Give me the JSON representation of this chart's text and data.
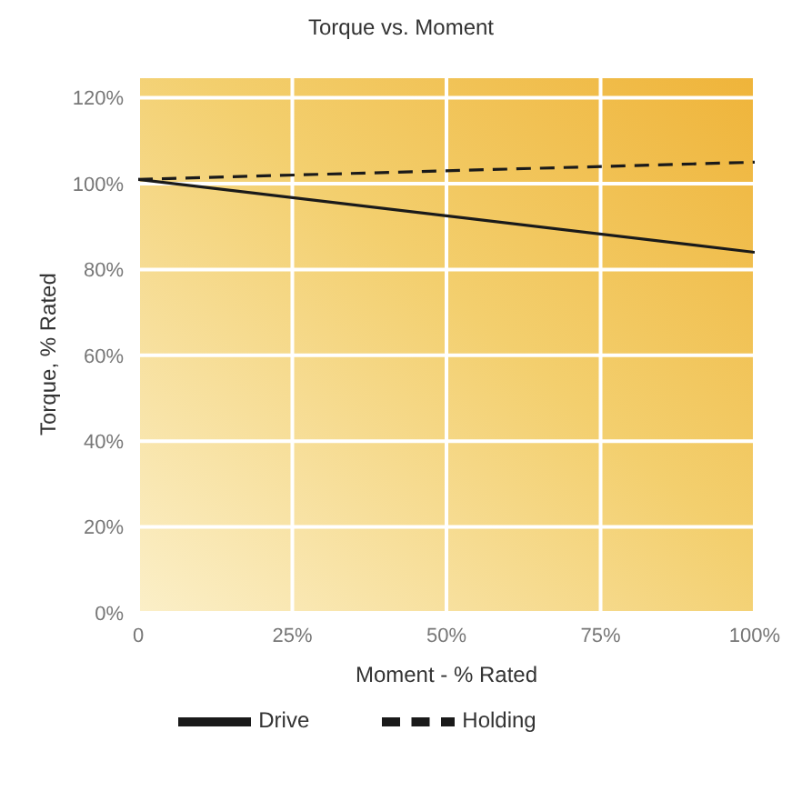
{
  "chart_data": {
    "type": "line",
    "title": "Torque vs. Moment",
    "xlabel": "Moment - % Rated",
    "ylabel": "Torque, % Rated",
    "x": [
      0,
      100
    ],
    "series": [
      {
        "name": "Drive",
        "color": "#1a1a1a",
        "values": [
          101,
          84
        ],
        "line_style": "solid"
      },
      {
        "name": "Holding",
        "color": "#1a1a1a",
        "values": [
          101,
          105
        ],
        "line_style": "dashed"
      }
    ],
    "xlim": [
      0,
      100
    ],
    "xticks": [
      {
        "value": 0,
        "label": "0"
      },
      {
        "value": 25,
        "label": "25%"
      },
      {
        "value": 50,
        "label": "50%"
      },
      {
        "value": 75,
        "label": "75%"
      },
      {
        "value": 100,
        "label": "100%"
      }
    ],
    "ylim": [
      0,
      125
    ],
    "yticks": [
      {
        "value": 0,
        "label": "0%"
      },
      {
        "value": 20,
        "label": "20%"
      },
      {
        "value": 40,
        "label": "40%"
      },
      {
        "value": 60,
        "label": "60%"
      },
      {
        "value": 80,
        "label": "80%"
      },
      {
        "value": 100,
        "label": "100%"
      },
      {
        "value": 120,
        "label": "120%"
      }
    ],
    "grid": true,
    "legend": "bottom",
    "marker": "none"
  }
}
